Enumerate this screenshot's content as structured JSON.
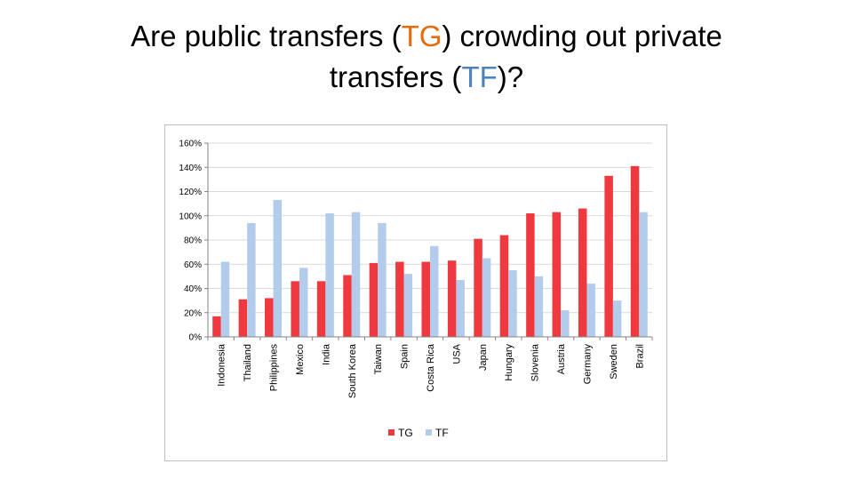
{
  "slide": {
    "title_part1": "Are public transfers (",
    "title_tg": "TG",
    "title_part2": ") crowding out private",
    "title_line2_part1": "transfers (",
    "title_tf": "TF",
    "title_line2_part2": ")?"
  },
  "chart_data": {
    "type": "bar",
    "categories": [
      "Indonesia",
      "Thailand",
      "Philippines",
      "Mexico",
      "India",
      "South Korea",
      "Taiwan",
      "Spain",
      "Costa Rica",
      "USA",
      "Japan",
      "Hungary",
      "Slovenia",
      "Austria",
      "Germany",
      "Sweden",
      "Brazil"
    ],
    "series": [
      {
        "name": "TG",
        "color": "#f0393e",
        "values": [
          17,
          31,
          32,
          46,
          46,
          51,
          61,
          62,
          62,
          63,
          81,
          84,
          102,
          103,
          106,
          133,
          141
        ]
      },
      {
        "name": "TF",
        "color": "#b4cceb",
        "values": [
          62,
          94,
          113,
          57,
          102,
          103,
          94,
          52,
          75,
          47,
          65,
          55,
          50,
          22,
          44,
          30,
          103
        ]
      }
    ],
    "yticks": [
      "0%",
      "20%",
      "40%",
      "60%",
      "80%",
      "100%",
      "120%",
      "140%",
      "160%"
    ],
    "ylim": [
      0,
      160
    ],
    "grid": true,
    "legend_position": "bottom",
    "title": "",
    "xlabel": "",
    "ylabel": ""
  }
}
